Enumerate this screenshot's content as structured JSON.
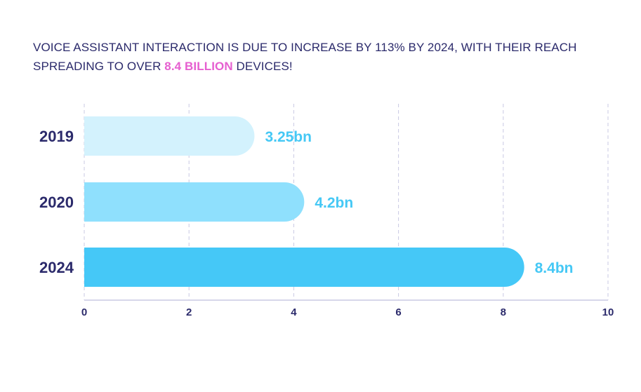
{
  "headline": {
    "line1": "VOICE ASSISTANT INTERACTION IS DUE TO INCREASE BY 113% BY 2024, WITH THEIR REACH",
    "line2_prefix": "SPREADING TO  OVER ",
    "highlight": "8.4 BILLION",
    "line2_suffix": " DEVICES!"
  },
  "colors": {
    "text": "#2b2a6b",
    "highlight": "#e65fd0",
    "label": "#45c8f5",
    "grid": "#c9c9e3",
    "bars": [
      "#d3f2fd",
      "#8fe0fd",
      "#45c8f7"
    ]
  },
  "chart_data": {
    "type": "bar",
    "orientation": "horizontal",
    "categories": [
      "2019",
      "2020",
      "2024"
    ],
    "values": [
      3.25,
      4.2,
      8.4
    ],
    "data_labels": [
      "3.25bn",
      "4.2bn",
      "8.4bn"
    ],
    "xlim": [
      0,
      10
    ],
    "xticks": [
      "0",
      "2",
      "4",
      "6",
      "8",
      "10"
    ],
    "grid": true,
    "title": "",
    "xlabel": "",
    "ylabel": ""
  }
}
